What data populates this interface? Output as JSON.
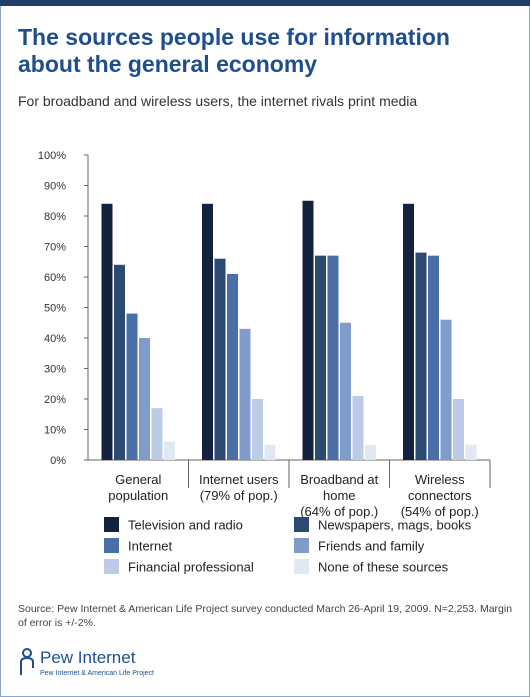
{
  "header": {
    "title": "The sources people use for information about the general economy",
    "subtitle": "For broadband and wireless users, the internet rivals print media"
  },
  "chart_data": {
    "type": "bar",
    "categories": [
      [
        "General",
        "population"
      ],
      [
        "Internet users",
        "(79% of pop.)"
      ],
      [
        "Broadband at",
        "home",
        "(64% of pop.)"
      ],
      [
        "Wireless",
        "connectors",
        "(54% of pop.)"
      ]
    ],
    "series": [
      {
        "name": "Television and radio",
        "color": "#13223f",
        "values": [
          84,
          84,
          85,
          84
        ]
      },
      {
        "name": "Newspapers, mags, books",
        "color": "#2b4a72",
        "values": [
          64,
          66,
          67,
          68
        ]
      },
      {
        "name": "Internet",
        "color": "#4a6fa6",
        "values": [
          48,
          61,
          67,
          67
        ]
      },
      {
        "name": "Friends and family",
        "color": "#7f9ccb",
        "values": [
          40,
          43,
          45,
          46
        ]
      },
      {
        "name": "Financial professional",
        "color": "#bccbe6",
        "values": [
          17,
          20,
          21,
          20
        ]
      },
      {
        "name": "None of these sources",
        "color": "#e1e8f4",
        "values": [
          6,
          5,
          5,
          5
        ]
      }
    ],
    "y_ticks": [
      "0%",
      "10%",
      "20%",
      "30%",
      "40%",
      "50%",
      "60%",
      "70%",
      "80%",
      "90%",
      "100%"
    ],
    "ylim": [
      0,
      100
    ],
    "legend_position": "bottom"
  },
  "legend_order": [
    0,
    1,
    2,
    3,
    4,
    5
  ],
  "source": "Source: Pew Internet & American Life Project survey conducted March 26-April 19, 2009. N=2,253. Margin of error is +/-2%.",
  "logo": {
    "name": "Pew Internet",
    "tagline": "Pew Internet & American Life Project"
  }
}
